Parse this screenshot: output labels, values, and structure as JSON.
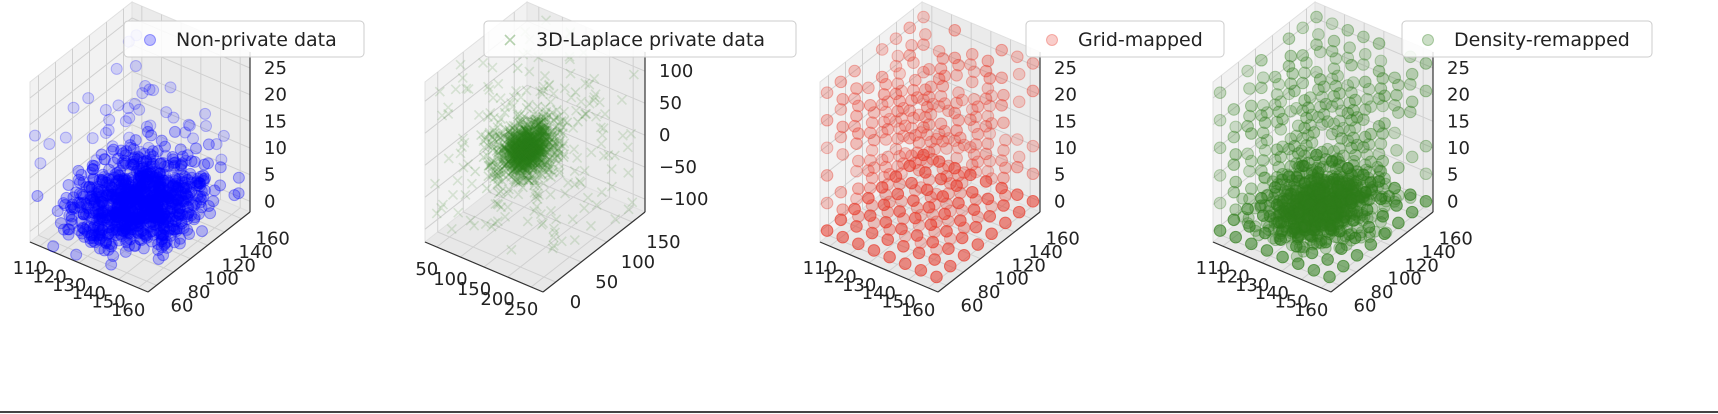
{
  "chart_data": [
    {
      "type": "scatter",
      "projection": "3d",
      "title": "",
      "legend": {
        "label": "Non-private data",
        "marker": "circle",
        "placement": "top"
      },
      "color": "#0000ff",
      "grid": true,
      "xlim": [
        105,
        160
      ],
      "ylim": [
        55,
        165
      ],
      "zlim": [
        -2,
        27
      ],
      "xticks": [
        "110",
        "120",
        "130",
        "140",
        "150",
        "160"
      ],
      "yticks": [
        "60",
        "80",
        "100",
        "120",
        "140",
        "160"
      ],
      "zticks": [
        "0",
        "5",
        "10",
        "15",
        "20",
        "25"
      ],
      "distribution": "cluster",
      "cluster": {
        "x": [
          110,
          155
        ],
        "y": [
          60,
          160
        ],
        "z": [
          0,
          10
        ],
        "n": 900,
        "outliers": 60
      }
    },
    {
      "type": "scatter",
      "projection": "3d",
      "title": "",
      "legend": {
        "label": "3D-Laplace private data",
        "marker": "x",
        "placement": "top"
      },
      "color": "#2e7d1a",
      "grid": true,
      "xlim": [
        30,
        255
      ],
      "ylim": [
        -10,
        190
      ],
      "zlim": [
        -110,
        120
      ],
      "xticks": [
        "50",
        "100",
        "150",
        "200",
        "250"
      ],
      "yticks": [
        "0",
        "50",
        "100",
        "150"
      ],
      "zticks": [
        "−100",
        "−50",
        "0",
        "50",
        "100"
      ],
      "distribution": "laplace-cloud",
      "cluster": {
        "x": [
          95,
          175
        ],
        "y": [
          30,
          130
        ],
        "z": [
          -30,
          40
        ],
        "n": 1300,
        "outliers": 200
      }
    },
    {
      "type": "scatter",
      "projection": "3d",
      "title": "",
      "legend": {
        "label": "Grid-mapped",
        "marker": "circle",
        "placement": "top-right"
      },
      "color": "#e8392a",
      "grid": true,
      "xlim": [
        105,
        160
      ],
      "ylim": [
        55,
        165
      ],
      "zlim": [
        -2,
        27
      ],
      "xticks": [
        "110",
        "120",
        "130",
        "140",
        "150",
        "160"
      ],
      "yticks": [
        "60",
        "80",
        "100",
        "120",
        "140",
        "160"
      ],
      "zticks": [
        "0",
        "5",
        "10",
        "15",
        "20",
        "25"
      ],
      "distribution": "grid",
      "grid_points": {
        "nx": 8,
        "ny": 8,
        "nz": 6,
        "x": [
          107,
          158
        ],
        "y": [
          58,
          162
        ],
        "z": [
          0,
          25
        ]
      }
    },
    {
      "type": "scatter",
      "projection": "3d",
      "title": "",
      "legend": {
        "label": "Density-remapped",
        "marker": "circle",
        "placement": "top-right"
      },
      "color": "#2e7d1a",
      "grid": true,
      "xlim": [
        105,
        160
      ],
      "ylim": [
        55,
        165
      ],
      "zlim": [
        -2,
        27
      ],
      "xticks": [
        "110",
        "120",
        "130",
        "140",
        "150",
        "160"
      ],
      "yticks": [
        "60",
        "80",
        "100",
        "120",
        "140",
        "160"
      ],
      "zticks": [
        "0",
        "5",
        "10",
        "15",
        "20",
        "25"
      ],
      "distribution": "grid+cluster",
      "grid_points": {
        "nx": 8,
        "ny": 8,
        "nz": 6,
        "x": [
          107,
          158
        ],
        "y": [
          58,
          162
        ],
        "z": [
          0,
          25
        ]
      },
      "cluster": {
        "x": [
          112,
          150
        ],
        "y": [
          70,
          150
        ],
        "z": [
          0,
          6
        ],
        "n": 700,
        "outliers": 0
      }
    }
  ]
}
